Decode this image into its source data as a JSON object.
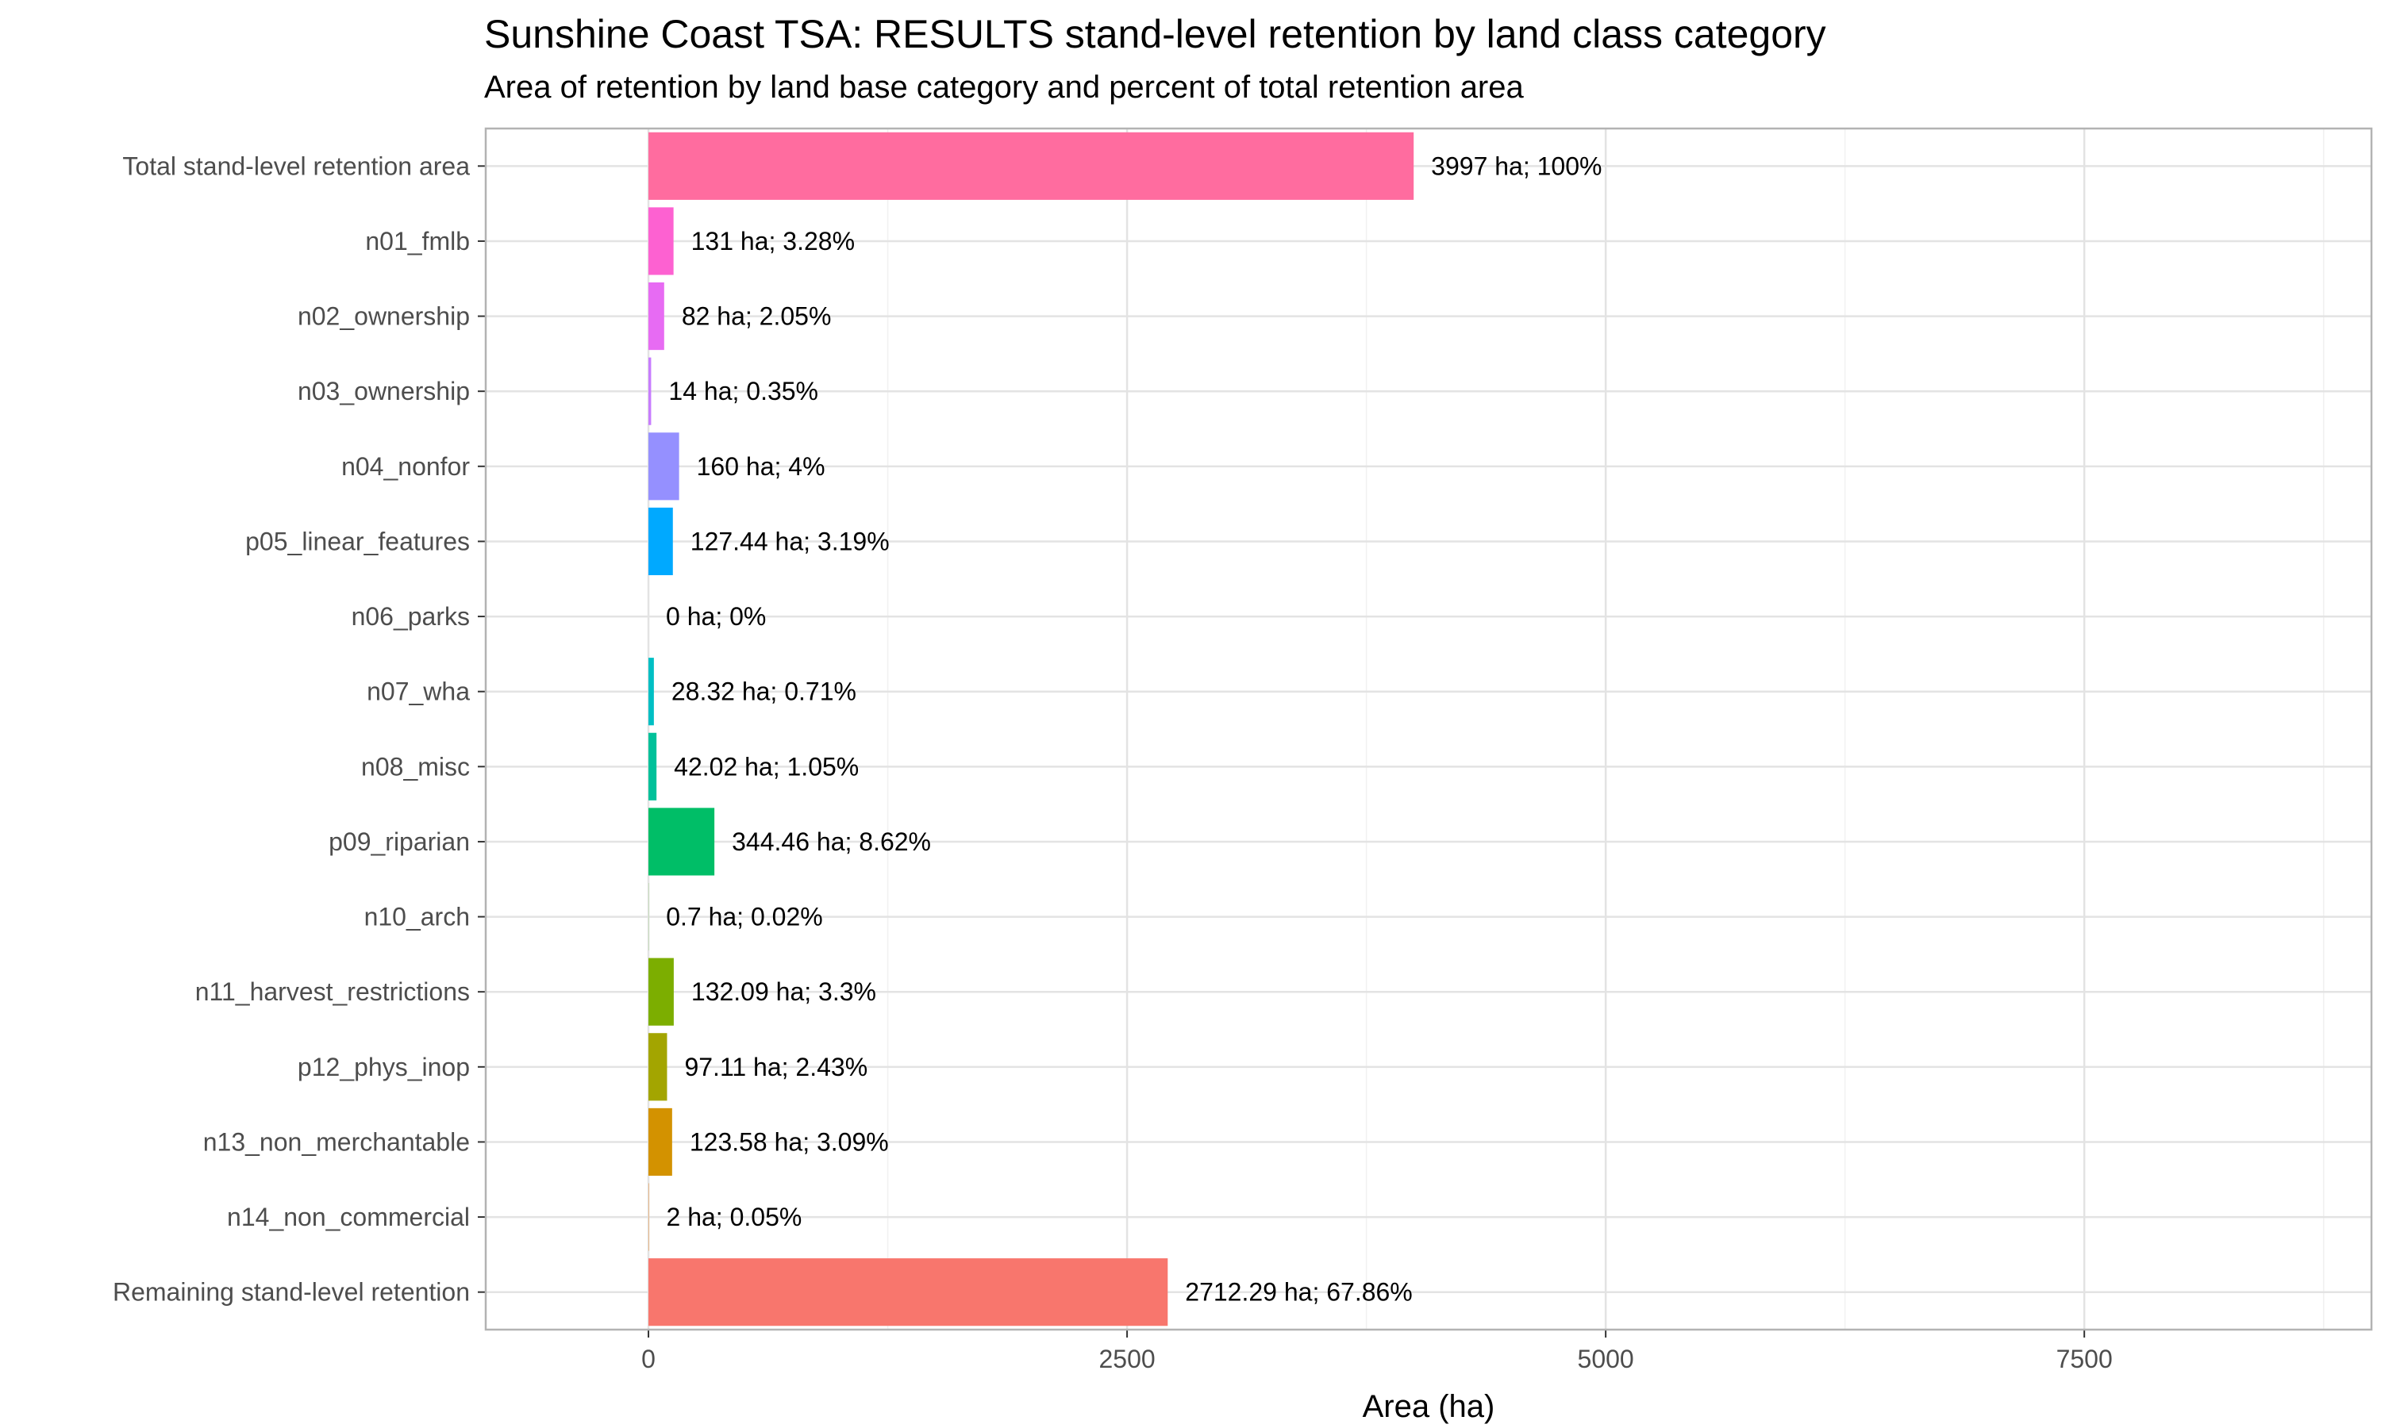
{
  "chart_data": {
    "type": "bar",
    "orientation": "horizontal",
    "title": "Sunshine Coast TSA: RESULTS stand-level retention by land class category",
    "subtitle": "Area of retention by land base category and percent of total retention area",
    "xlabel": "Area (ha)",
    "ylabel": "",
    "xlim": [
      -850,
      9000
    ],
    "xticks": [
      0,
      2500,
      5000,
      7500
    ],
    "xtick_labels": [
      "0",
      "2500",
      "5000",
      "7500"
    ],
    "grid": true,
    "legend": "none",
    "categories": [
      "Total stand-level retention area",
      "n01_fmlb",
      "n02_ownership",
      "n03_ownership",
      "n04_nonfor",
      "p05_linear_features",
      "n06_parks",
      "n07_wha",
      "n08_misc",
      "p09_riparian",
      "n10_arch",
      "n11_harvest_restrictions",
      "p12_phys_inop",
      "n13_non_merchantable",
      "n14_non_commercial",
      "Remaining stand-level retention"
    ],
    "values": [
      3997,
      131,
      82,
      14,
      160,
      127.44,
      0,
      28.32,
      42.02,
      344.46,
      0.7,
      132.09,
      97.11,
      123.58,
      2,
      2712.29
    ],
    "labels": [
      "3997 ha; 100%",
      "131 ha; 3.28%",
      "82 ha; 2.05%",
      "14 ha; 0.35%",
      "160 ha; 4%",
      "127.44 ha; 3.19%",
      "0 ha; 0%",
      "28.32 ha; 0.71%",
      "42.02 ha; 1.05%",
      "344.46 ha; 8.62%",
      "0.7 ha; 0.02%",
      "132.09 ha; 3.3%",
      "97.11 ha; 2.43%",
      "123.58 ha; 3.09%",
      "2 ha; 0.05%",
      "2712.29 ha; 67.86%"
    ],
    "colors": [
      "#FF6C9F",
      "#FD61D1",
      "#E76BF3",
      "#C77CFF",
      "#9590FF",
      "#00A9FF",
      "#00BCD8",
      "#00BFC4",
      "#00C19A",
      "#00BE67",
      "#39B600",
      "#7CAE00",
      "#A3A500",
      "#D39200",
      "#E88526",
      "#F8766D"
    ]
  }
}
